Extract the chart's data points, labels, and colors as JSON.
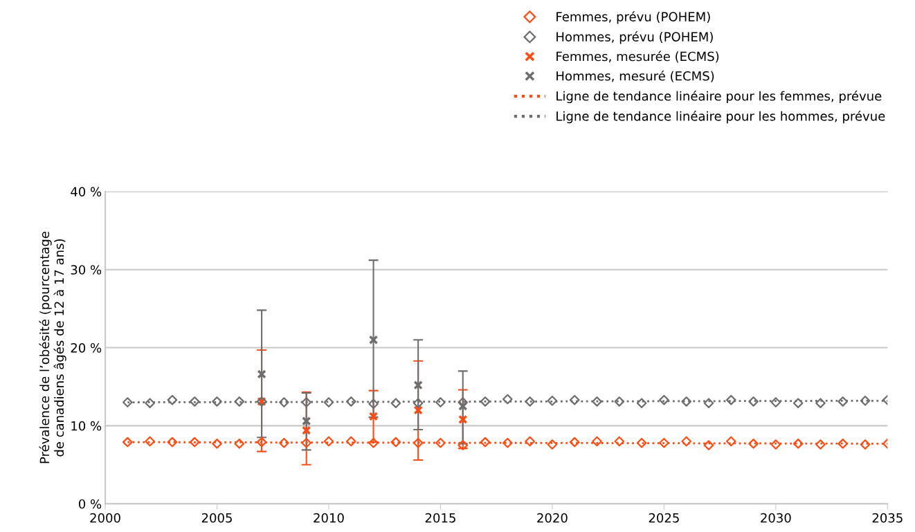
{
  "chart_data": {
    "type": "scatter",
    "ylabel": "Prévalence de l’obésité (pourcentage\nde canadiens âgés de 12 à 17 ans)",
    "xlim": [
      2000,
      2035
    ],
    "xticks": [
      2000,
      2005,
      2010,
      2015,
      2020,
      2025,
      2030,
      2035
    ],
    "ylim": [
      0,
      40
    ],
    "yticks": [
      {
        "value": 0,
        "label": "0 %"
      },
      {
        "value": 10,
        "label": "10 %"
      },
      {
        "value": 20,
        "label": "20 %"
      },
      {
        "value": 30,
        "label": "30 %"
      },
      {
        "value": 40,
        "label": "40 %"
      }
    ],
    "grid": "y",
    "legend": "top right",
    "series": [
      {
        "name": "Femmes, prévu (POHEM)",
        "marker": "diamond",
        "color": "#ff4b12",
        "x": [
          2001,
          2002,
          2003,
          2004,
          2005,
          2006,
          2007,
          2008,
          2009,
          2010,
          2011,
          2012,
          2013,
          2014,
          2015,
          2016,
          2017,
          2018,
          2019,
          2020,
          2021,
          2022,
          2023,
          2024,
          2025,
          2026,
          2027,
          2028,
          2029,
          2030,
          2031,
          2032,
          2033,
          2034,
          2035
        ],
        "values": [
          7.9,
          8.0,
          7.9,
          7.9,
          7.7,
          7.7,
          7.9,
          7.8,
          7.8,
          8.0,
          8.0,
          7.8,
          7.9,
          7.8,
          7.8,
          7.5,
          7.9,
          7.8,
          8.0,
          7.6,
          7.9,
          8.0,
          8.0,
          7.8,
          7.8,
          8.0,
          7.5,
          8.0,
          7.7,
          7.6,
          7.7,
          7.6,
          7.7,
          7.6,
          7.7
        ]
      },
      {
        "name": "Hommes, prévu (POHEM)",
        "marker": "diamond",
        "color": "#6d6d6d",
        "x": [
          2001,
          2002,
          2003,
          2004,
          2005,
          2006,
          2007,
          2008,
          2009,
          2010,
          2011,
          2012,
          2013,
          2014,
          2015,
          2016,
          2017,
          2018,
          2019,
          2020,
          2021,
          2022,
          2023,
          2024,
          2025,
          2026,
          2027,
          2028,
          2029,
          2030,
          2031,
          2032,
          2033,
          2034,
          2035
        ],
        "values": [
          13.0,
          12.9,
          13.3,
          13.1,
          13.1,
          13.1,
          13.1,
          13.0,
          13.0,
          13.0,
          13.1,
          12.8,
          12.9,
          12.9,
          13.0,
          13.0,
          13.1,
          13.4,
          13.1,
          13.2,
          13.3,
          13.1,
          13.1,
          12.9,
          13.3,
          13.1,
          12.9,
          13.3,
          13.1,
          13.0,
          12.9,
          12.9,
          13.1,
          13.2,
          13.3
        ]
      },
      {
        "name": "Femmes, mesurée (ECMS)",
        "marker": "cross",
        "color": "#ff4b12",
        "x": [
          2007,
          2009,
          2012,
          2014,
          2016
        ],
        "values": [
          13.1,
          9.4,
          11.2,
          12.0,
          10.8
        ],
        "errors": [
          [
            6.7,
            19.7
          ],
          [
            5.0,
            14.3
          ],
          [
            7.9,
            14.5
          ],
          [
            5.6,
            18.3
          ],
          [
            7.1,
            14.6
          ]
        ]
      },
      {
        "name": "Hommes, mesuré (ECMS)",
        "marker": "cross",
        "color": "#6d6d6d",
        "x": [
          2007,
          2009,
          2012,
          2014,
          2016
        ],
        "values": [
          16.6,
          10.6,
          21.0,
          15.2,
          12.5
        ],
        "errors": [
          [
            8.5,
            24.8
          ],
          [
            6.9,
            14.2
          ],
          [
            11.1,
            31.2
          ],
          [
            9.5,
            21.0
          ],
          [
            7.7,
            17.0
          ]
        ]
      },
      {
        "name": "Ligne de tendance linéaire pour les femmes, prévue",
        "type": "line",
        "line_style": "dotted",
        "color": "#ff4b12",
        "x": [
          2001,
          2035
        ],
        "values": [
          7.9,
          7.7
        ]
      },
      {
        "name": "Ligne de tendance linéaire pour les hommes, prévue",
        "type": "line",
        "line_style": "dotted",
        "color": "#6d6d6d",
        "x": [
          2001,
          2035
        ],
        "values": [
          13.0,
          13.2
        ]
      }
    ]
  }
}
